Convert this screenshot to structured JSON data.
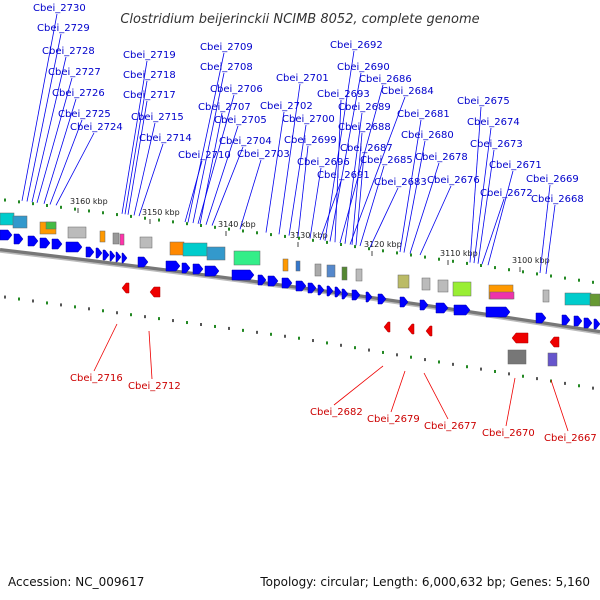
{
  "title": "Clostridium beijerinckii NCIMB 8052, complete genome",
  "footer": {
    "accession": "Accession: NC_009617",
    "summary": "Topology: circular; Length: 6,000,632 bp; Genes: 5,160"
  },
  "ticks": [
    "3160 kbp",
    "3150 kbp",
    "3140 kbp",
    "3130 kbp",
    "3120 kbp",
    "3110 kbp",
    "3100 kbp"
  ],
  "top_labels": [
    "Cbei_2730",
    "Cbei_2729",
    "Cbei_2728",
    "Cbei_2727",
    "Cbei_2726",
    "Cbei_2725",
    "Cbei_2724",
    "Cbei_2719",
    "Cbei_2718",
    "Cbei_2717",
    "Cbei_2715",
    "Cbei_2714",
    "Cbei_2709",
    "Cbei_2708",
    "Cbei_2706",
    "Cbei_2707",
    "Cbei_2705",
    "Cbei_2704",
    "Cbei_2710",
    "Cbei_2703",
    "Cbei_2702",
    "Cbei_2701",
    "Cbei_2700",
    "Cbei_2699",
    "Cbei_2696",
    "Cbei_2691",
    "Cbei_2692",
    "Cbei_2690",
    "Cbei_2693",
    "Cbei_2686",
    "Cbei_2689",
    "Cbei_2684",
    "Cbei_2688",
    "Cbei_2687",
    "Cbei_2685",
    "Cbei_2683",
    "Cbei_2681",
    "Cbei_2680",
    "Cbei_2678",
    "Cbei_2676",
    "Cbei_2675",
    "Cbei_2674",
    "Cbei_2673",
    "Cbei_2672",
    "Cbei_2671",
    "Cbei_2669",
    "Cbei_2668"
  ],
  "bottom_labels": [
    "Cbei_2716",
    "Cbei_2712",
    "Cbei_2682",
    "Cbei_2679",
    "Cbei_2677",
    "Cbei_2670",
    "Cbei_2667"
  ],
  "colors": {
    "forward": "#0000ff",
    "reverse": "#ee0000",
    "backbone": "#888888",
    "top_label": "#0000cc",
    "bottom_label": "#cc0000",
    "tick": "#228822"
  }
}
